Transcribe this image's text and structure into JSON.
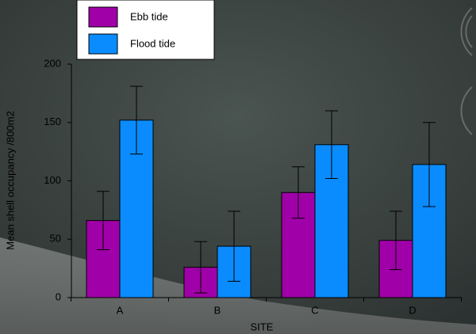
{
  "chart_data": {
    "type": "bar",
    "categories": [
      "A",
      "B",
      "C",
      "D"
    ],
    "series": [
      {
        "name": "Ebb tide",
        "color": "#a000a8",
        "values": [
          66,
          26,
          90,
          49
        ],
        "errors": [
          25,
          22,
          22,
          25
        ]
      },
      {
        "name": "Flood tide",
        "color": "#0a8cff",
        "values": [
          152,
          44,
          131,
          114
        ],
        "errors": [
          29,
          30,
          29,
          36
        ]
      }
    ],
    "x_label": "SITE",
    "y_label": "Mean shell occupancy /800m2",
    "ylim": [
      0,
      200
    ],
    "yticks": [
      0,
      50,
      100,
      150,
      200
    ],
    "legend": "top-left"
  }
}
